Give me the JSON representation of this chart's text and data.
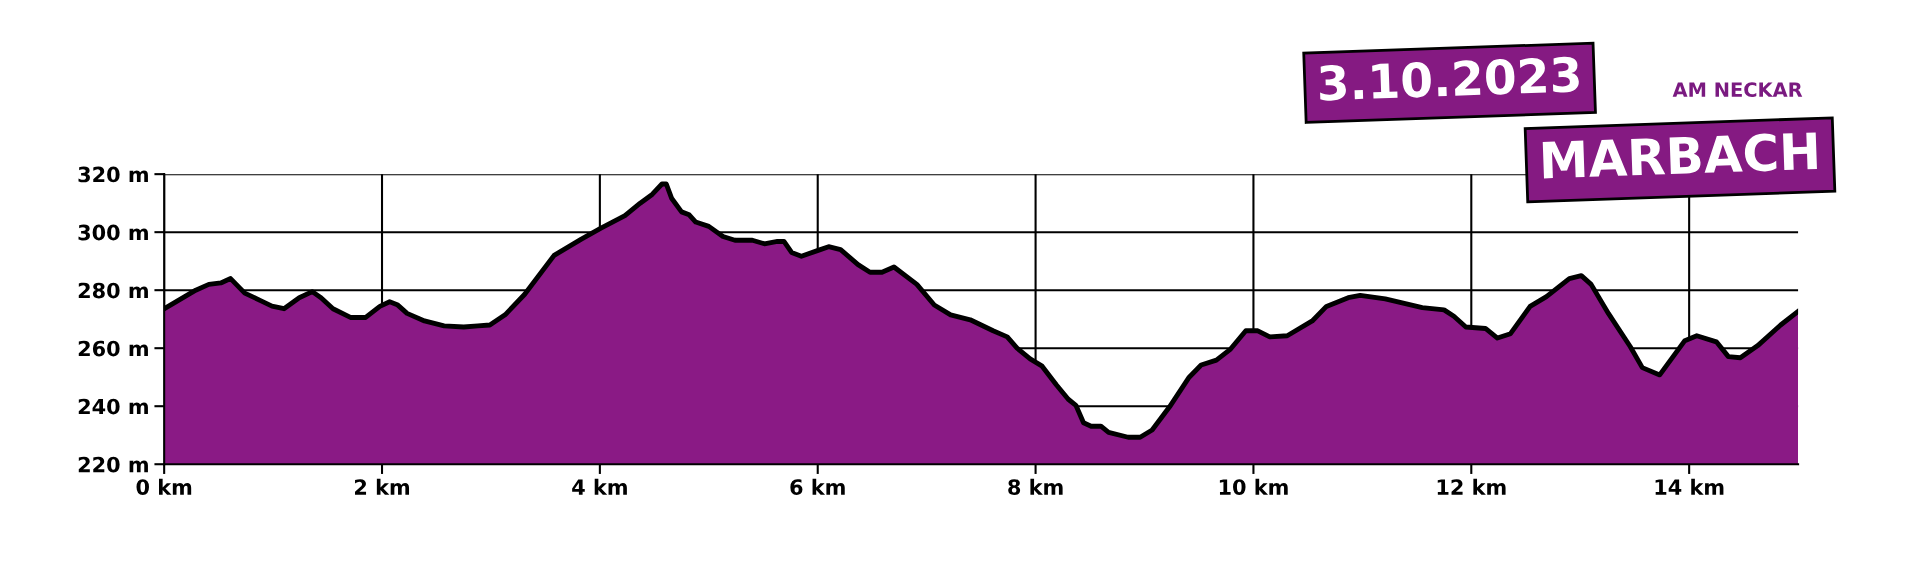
{
  "chart_data": {
    "type": "area",
    "x": [
      0,
      0.29,
      0.41,
      0.52,
      0.61,
      0.74,
      0.88,
      0.99,
      1.1,
      1.24,
      1.36,
      1.44,
      1.55,
      1.71,
      1.85,
      1.98,
      2.07,
      2.14,
      2.23,
      2.39,
      2.57,
      2.75,
      2.88,
      2.99,
      3.13,
      3.31,
      3.58,
      3.83,
      4.01,
      4.23,
      4.37,
      4.48,
      4.57,
      4.61,
      4.66,
      4.75,
      4.82,
      4.88,
      5.0,
      5.13,
      5.24,
      5.4,
      5.51,
      5.63,
      5.69,
      5.76,
      5.85,
      6.01,
      6.1,
      6.21,
      6.37,
      6.48,
      6.59,
      6.7,
      6.91,
      7.07,
      7.22,
      7.4,
      7.61,
      7.74,
      7.83,
      7.95,
      8.06,
      8.19,
      8.3,
      8.37,
      8.44,
      8.51,
      8.6,
      8.67,
      8.85,
      8.96,
      9.07,
      9.23,
      9.41,
      9.52,
      9.66,
      9.79,
      9.93,
      10.04,
      10.15,
      10.31,
      10.54,
      10.67,
      10.87,
      10.98,
      11.21,
      11.55,
      11.75,
      11.84,
      11.95,
      12.13,
      12.24,
      12.36,
      12.54,
      12.69,
      12.9,
      13.01,
      13.1,
      13.26,
      13.46,
      13.57,
      13.73,
      13.96,
      14.07,
      14.25,
      14.36,
      14.47,
      14.63,
      14.84,
      15.0
    ],
    "series": [
      {
        "color": "#8a1a85",
        "values": [
          273.6,
          280,
          282,
          282.5,
          284,
          279,
          276.5,
          274.5,
          273.6,
          277.4,
          279.5,
          277.4,
          273.6,
          270.6,
          270.6,
          274.4,
          276,
          275,
          272,
          269.4,
          267.7,
          267.3,
          267.7,
          268,
          271.5,
          278.6,
          292,
          297.6,
          301.4,
          305.7,
          310,
          313,
          316.6,
          316.6,
          311.6,
          307,
          306,
          303.5,
          302,
          298.5,
          297.2,
          297.2,
          296,
          296.8,
          296.8,
          293,
          291.7,
          293.8,
          295,
          294,
          288.8,
          286.2,
          286.2,
          288,
          282,
          274.9,
          271.5,
          269.8,
          266,
          263.9,
          260,
          256.3,
          253.8,
          247.4,
          242.4,
          240.3,
          234.3,
          233.1,
          233.1,
          231,
          229.3,
          229.3,
          231.8,
          239.8,
          250,
          254.2,
          255.9,
          259.7,
          266,
          266,
          263.9,
          264.3,
          269.4,
          274.4,
          277.4,
          278.2,
          277,
          274,
          273.2,
          271,
          267.3,
          266.8,
          263.5,
          265,
          274.4,
          277.8,
          284,
          285,
          282,
          271.9,
          260.5,
          253.3,
          250.8,
          262.6,
          264.3,
          262.2,
          257.1,
          256.7,
          260.9,
          268,
          272.7
        ]
      }
    ],
    "xlim": [
      0,
      15
    ],
    "ylim": [
      220,
      320
    ],
    "xticks": [
      {
        "value": 0,
        "label": "0 km"
      },
      {
        "value": 2,
        "label": "2 km"
      },
      {
        "value": 4,
        "label": "4 km"
      },
      {
        "value": 6,
        "label": "6 km"
      },
      {
        "value": 8,
        "label": "8 km"
      },
      {
        "value": 10,
        "label": "10 km"
      },
      {
        "value": 12,
        "label": "12 km"
      },
      {
        "value": 14,
        "label": "14 km"
      }
    ],
    "yticks": [
      {
        "value": 220,
        "label": "220 m"
      },
      {
        "value": 240,
        "label": "240 m"
      },
      {
        "value": 260,
        "label": "260 m"
      },
      {
        "value": 280,
        "label": "280 m"
      },
      {
        "value": 300,
        "label": "300 m"
      },
      {
        "value": 320,
        "label": "320 m"
      }
    ],
    "grid": true,
    "annotations": [
      "3.10.2023",
      "AM NECKAR",
      "MARBACH"
    ]
  }
}
